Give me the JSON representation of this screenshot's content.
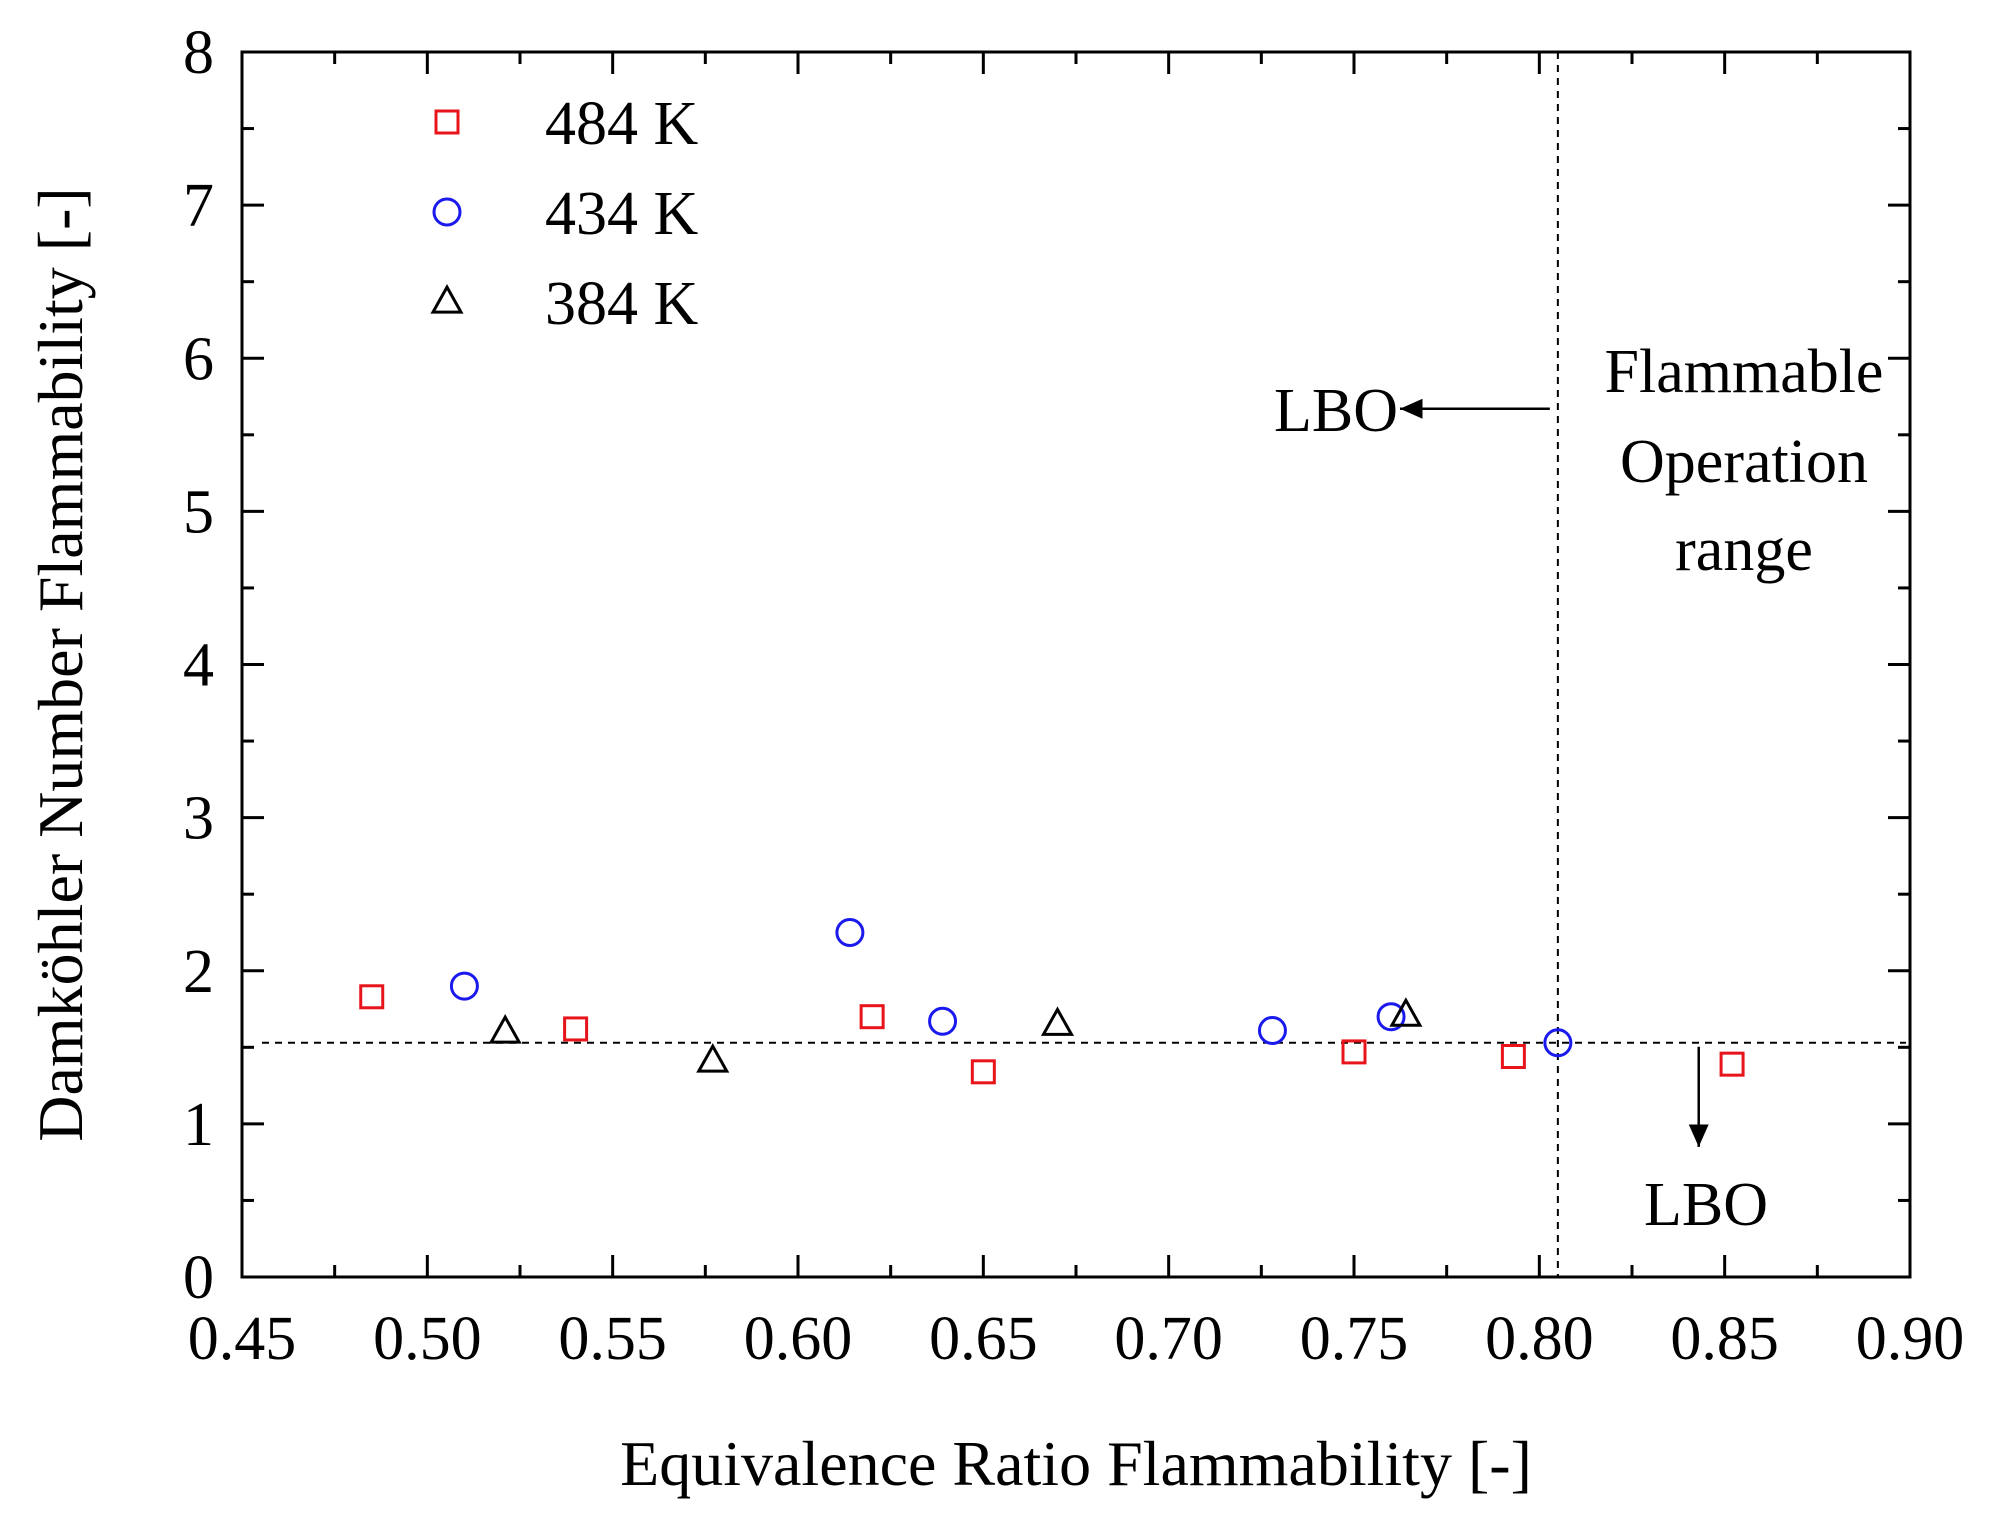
{
  "chart_data": {
    "type": "scatter",
    "xlabel": "Equivalence Ratio Flammability [-]",
    "ylabel": "Damköhler Number Flammability [-]",
    "xlim": [
      0.45,
      0.9
    ],
    "ylim": [
      0,
      8
    ],
    "x_ticks": [
      "0.45",
      "0.50",
      "0.55",
      "0.60",
      "0.65",
      "0.70",
      "0.75",
      "0.80",
      "0.85",
      "0.90"
    ],
    "y_ticks": [
      "0",
      "1",
      "2",
      "3",
      "4",
      "5",
      "6",
      "7",
      "8"
    ],
    "legend_position": "top-left",
    "series": [
      {
        "name": "484 K",
        "marker": "square",
        "color": "#e8141c",
        "points": [
          [
            0.485,
            1.83
          ],
          [
            0.54,
            1.62
          ],
          [
            0.62,
            1.7
          ],
          [
            0.65,
            1.34
          ],
          [
            0.75,
            1.47
          ],
          [
            0.793,
            1.44
          ],
          [
            0.852,
            1.39
          ]
        ]
      },
      {
        "name": "434 K",
        "marker": "circle",
        "color": "#1a1aee",
        "points": [
          [
            0.51,
            1.9
          ],
          [
            0.614,
            2.25
          ],
          [
            0.639,
            1.67
          ],
          [
            0.728,
            1.61
          ],
          [
            0.76,
            1.7
          ],
          [
            0.805,
            1.53
          ]
        ]
      },
      {
        "name": "384 K",
        "marker": "triangle",
        "color": "#000000",
        "points": [
          [
            0.521,
            1.6
          ],
          [
            0.577,
            1.41
          ],
          [
            0.67,
            1.65
          ],
          [
            0.764,
            1.71
          ]
        ]
      }
    ],
    "reference_lines": {
      "horizontal_y": 1.53,
      "vertical_x": 0.805
    },
    "annotations": {
      "lbo_left": "LBO",
      "lbo_bottom": "LBO",
      "region_label": [
        "Flammable",
        "Operation",
        "range"
      ]
    }
  }
}
